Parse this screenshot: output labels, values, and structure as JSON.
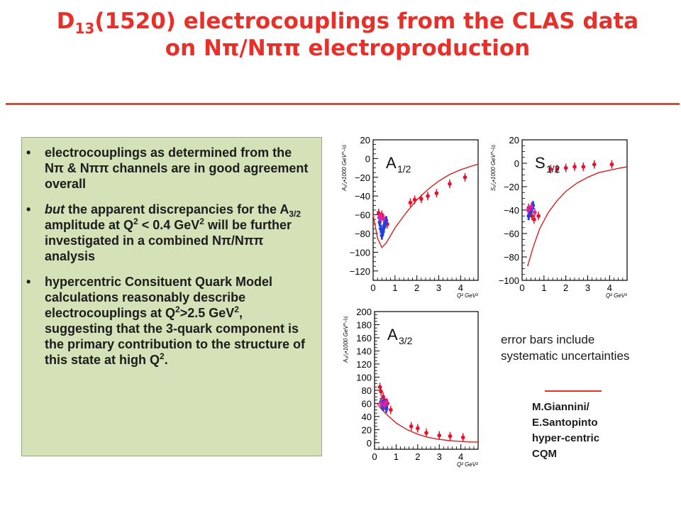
{
  "title": {
    "line1_a": "D",
    "line1_sub": "13",
    "line1_b": "(1520) electrocouplings from the CLAS data",
    "line2": "on Nπ/Nππ electroproduction"
  },
  "bullets": {
    "marker": "•",
    "b1": "electrocouplings as determined from the Nπ & Nππ channels are in good agreement overall",
    "b2_a": "but",
    "b2_b": " the apparent discrepancies for the A",
    "b2_sub": "3/2",
    "b2_c": " amplitude at Q",
    "b2_sup1": "2",
    "b2_d": " < 0.4 GeV",
    "b2_sup2": "2",
    "b2_e": " will be further investigated in a  combined Nπ/Nππ analysis",
    "b3_a": "hypercentric Consituent Quark Model calculations reasonably describe electrocouplings at Q",
    "b3_sup1": "2",
    "b3_b": ">2.5 GeV",
    "b3_sup2": "2",
    "b3_c": ", suggesting that the 3-quark component is the primary contribution to the structure of this state at high Q",
    "b3_sup3": "2",
    "b3_d": "."
  },
  "note": {
    "line1": "error bars include",
    "line2": "systematic uncertainties"
  },
  "credit": [
    "M.Giannini/",
    "E.Santopinto",
    "hyper-centric",
    "CQM"
  ],
  "colors": {
    "title": "#e8302a",
    "rule": "#e8452c",
    "box": "#d5e2b8",
    "curve": "#d42020",
    "points_red": "#e8102c",
    "points_blue": "#2040e0",
    "points_magenta": "#e020a0"
  },
  "chart_data": [
    {
      "type": "scatter",
      "panel": "A1/2",
      "label": "A",
      "label_sub": "1/2",
      "ylabel": "A₁/₂•1000 GeV^-½",
      "xlabel": "Q² GeV²",
      "xlim": [
        0,
        4.8
      ],
      "ylim": [
        -130,
        20
      ],
      "xticks": [
        "0",
        "1",
        "2",
        "3",
        "4"
      ],
      "yticks": [
        "20",
        "0",
        "−20",
        "−40",
        "−60",
        "−80",
        "−100",
        "−120"
      ],
      "model_curve": [
        [
          0,
          -60
        ],
        [
          0.2,
          -85
        ],
        [
          0.4,
          -95
        ],
        [
          0.6,
          -90
        ],
        [
          0.8,
          -82
        ],
        [
          1.0,
          -74
        ],
        [
          1.5,
          -58
        ],
        [
          2.0,
          -44
        ],
        [
          2.5,
          -33
        ],
        [
          3.0,
          -24
        ],
        [
          3.5,
          -17
        ],
        [
          4.0,
          -12
        ],
        [
          4.5,
          -8
        ],
        [
          4.8,
          -6
        ]
      ],
      "series": [
        {
          "color": "red",
          "points": [
            [
              0.25,
              -58
            ],
            [
              0.4,
              -60
            ],
            [
              0.5,
              -65
            ],
            [
              0.65,
              -70
            ],
            [
              1.7,
              -47
            ],
            [
              1.9,
              -44
            ],
            [
              2.2,
              -43
            ],
            [
              2.5,
              -40
            ],
            [
              2.9,
              -37
            ],
            [
              3.5,
              -27
            ],
            [
              4.2,
              -20
            ]
          ]
        },
        {
          "color": "blue",
          "points": [
            [
              0.3,
              -68
            ],
            [
              0.35,
              -75
            ],
            [
              0.4,
              -82
            ],
            [
              0.45,
              -78
            ],
            [
              0.5,
              -72
            ],
            [
              0.55,
              -70
            ],
            [
              0.6,
              -66
            ]
          ]
        },
        {
          "color": "magenta",
          "points": [
            [
              0.28,
              -63
            ],
            [
              0.38,
              -62
            ],
            [
              0.48,
              -64
            ]
          ]
        }
      ]
    },
    {
      "type": "scatter",
      "panel": "S1/2",
      "label": "S",
      "label_sub": "1/2",
      "ylabel": "S₁/₂•1000 GeV^-½",
      "xlabel": "Q² GeV²",
      "xlim": [
        0,
        4.8
      ],
      "ylim": [
        -100,
        20
      ],
      "xticks": [
        "0",
        "1",
        "2",
        "3",
        "4"
      ],
      "yticks": [
        "20",
        "0",
        "−20",
        "−40",
        "−60",
        "−80",
        "−100"
      ],
      "model_curve": [
        [
          0.25,
          -88
        ],
        [
          0.5,
          -72
        ],
        [
          0.8,
          -56
        ],
        [
          1.2,
          -42
        ],
        [
          1.6,
          -32
        ],
        [
          2.0,
          -24
        ],
        [
          2.5,
          -17
        ],
        [
          3.0,
          -12
        ],
        [
          3.5,
          -8
        ],
        [
          4.0,
          -6
        ],
        [
          4.5,
          -4
        ],
        [
          4.8,
          -3
        ]
      ],
      "series": [
        {
          "color": "red",
          "points": [
            [
              0.3,
              -38
            ],
            [
              0.45,
              -45
            ],
            [
              0.55,
              -48
            ],
            [
              0.75,
              -45
            ],
            [
              1.3,
              -5
            ],
            [
              1.6,
              -5
            ],
            [
              2.0,
              -4
            ],
            [
              2.4,
              -3
            ],
            [
              2.8,
              -3
            ],
            [
              3.3,
              -1
            ],
            [
              4.1,
              -1
            ]
          ]
        },
        {
          "color": "blue",
          "points": [
            [
              0.3,
              -45
            ],
            [
              0.35,
              -42
            ],
            [
              0.4,
              -40
            ],
            [
              0.45,
              -38
            ],
            [
              0.5,
              -36
            ]
          ]
        },
        {
          "color": "magenta",
          "points": [
            [
              0.28,
              -40
            ],
            [
              0.42,
              -37
            ],
            [
              0.58,
              -42
            ]
          ]
        }
      ]
    },
    {
      "type": "scatter",
      "panel": "A3/2",
      "label": "A",
      "label_sub": "3/2",
      "ylabel": "A₃/₂•1000 GeV^-½",
      "xlabel": "Q² GeV²",
      "xlim": [
        0,
        4.8
      ],
      "ylim": [
        -10,
        200
      ],
      "xticks": [
        "0",
        "1",
        "2",
        "3",
        "4"
      ],
      "yticks": [
        "200",
        "180",
        "160",
        "140",
        "120",
        "100",
        "80",
        "60",
        "40",
        "20",
        "0"
      ],
      "model_curve": [
        [
          0.1,
          60
        ],
        [
          0.3,
          52
        ],
        [
          0.5,
          45
        ],
        [
          0.8,
          36
        ],
        [
          1.0,
          30
        ],
        [
          1.5,
          20
        ],
        [
          2.0,
          13
        ],
        [
          2.5,
          8
        ],
        [
          3.0,
          5
        ],
        [
          3.5,
          3
        ],
        [
          4.0,
          2
        ],
        [
          4.5,
          1
        ],
        [
          4.8,
          1
        ]
      ],
      "series": [
        {
          "color": "red",
          "points": [
            [
              0.25,
              85
            ],
            [
              0.3,
              78
            ],
            [
              0.4,
              70
            ],
            [
              0.45,
              65
            ],
            [
              0.6,
              60
            ],
            [
              0.75,
              50
            ],
            [
              1.7,
              25
            ],
            [
              2.0,
              22
            ],
            [
              2.4,
              15
            ],
            [
              3.0,
              11
            ],
            [
              3.5,
              10
            ],
            [
              4.1,
              8
            ]
          ]
        },
        {
          "color": "blue",
          "points": [
            [
              0.3,
              62
            ],
            [
              0.35,
              58
            ],
            [
              0.4,
              55
            ],
            [
              0.45,
              57
            ],
            [
              0.5,
              60
            ],
            [
              0.55,
              52
            ]
          ]
        },
        {
          "color": "magenta",
          "points": [
            [
              0.3,
              60
            ],
            [
              0.45,
              57
            ],
            [
              0.55,
              62
            ]
          ]
        }
      ]
    }
  ]
}
